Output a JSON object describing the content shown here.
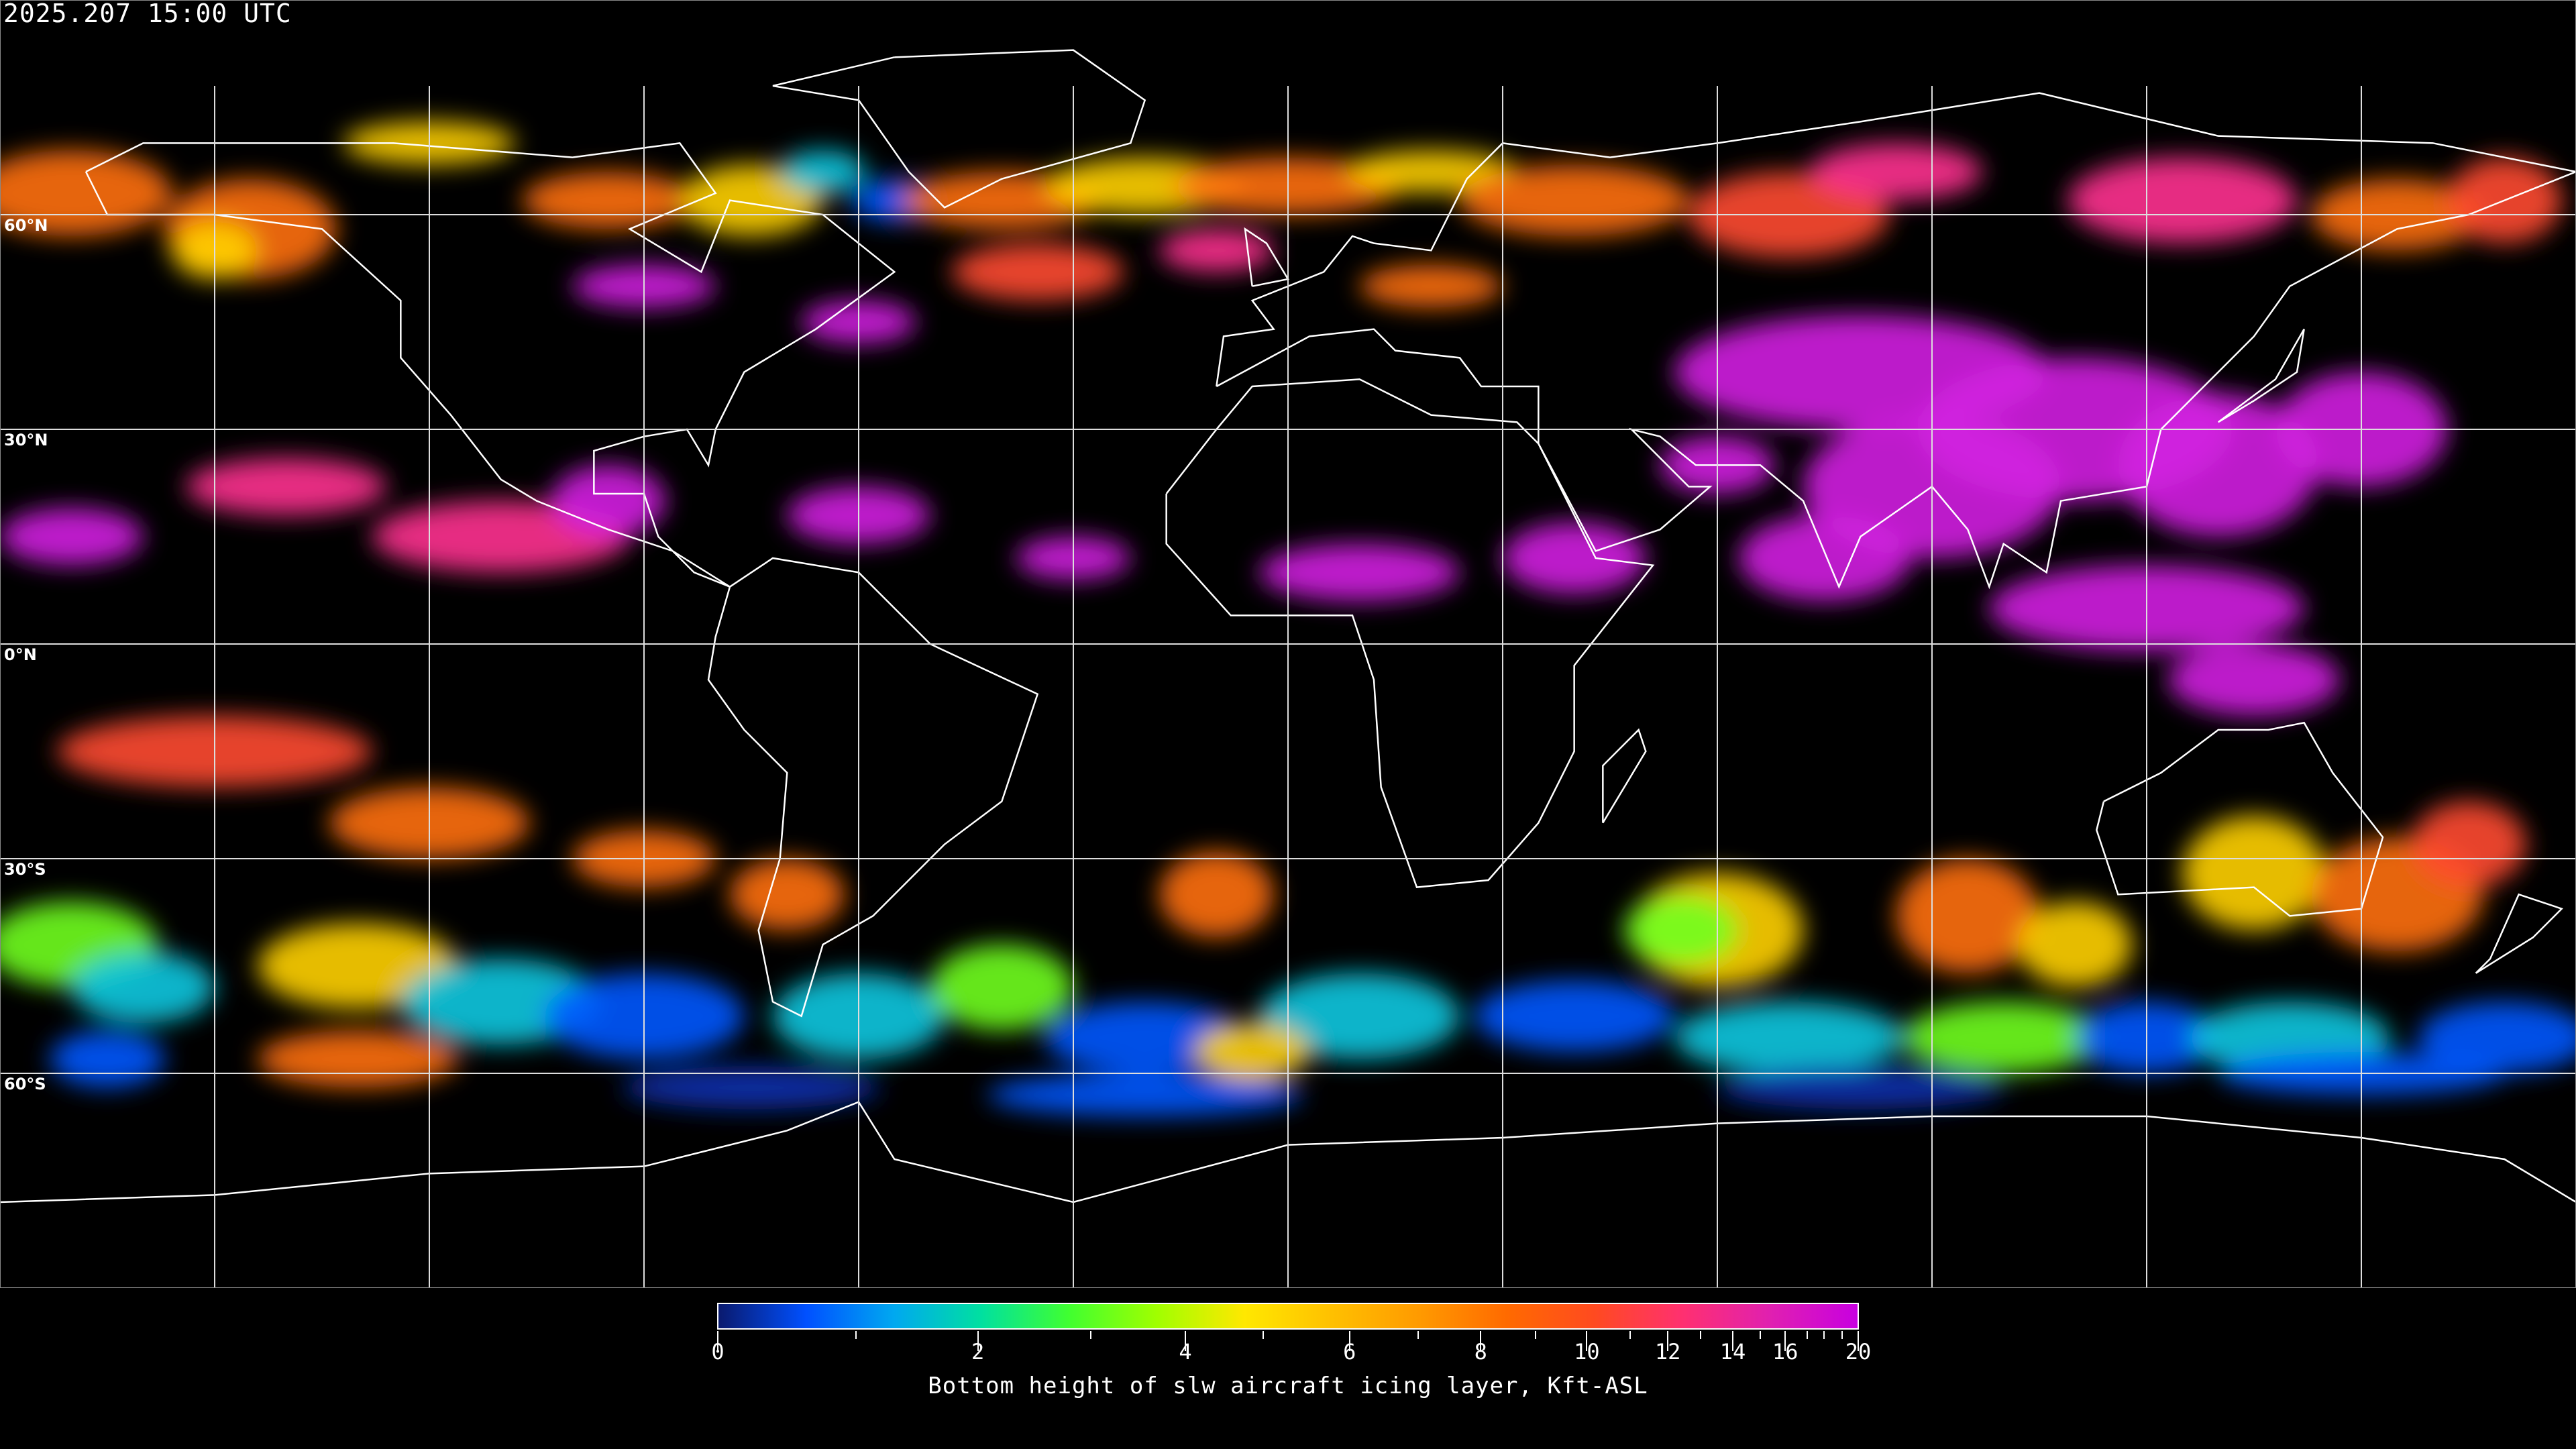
{
  "title": "2025.207 15:00 UTC",
  "map": {
    "projection": "equirectangular",
    "graticule_spacing_deg": 30,
    "lat_labels": [
      "60°N",
      "30°N",
      "0°N",
      "30°S",
      "60°S"
    ],
    "lat_values": [
      60,
      30,
      0,
      -30,
      -60
    ]
  },
  "colorbar": {
    "label": "Bottom height of slw aircraft icing layer, Kft-ASL",
    "ticks": [
      "0",
      "2",
      "4",
      "6",
      "8",
      "10",
      "12",
      "14",
      "16",
      "20"
    ],
    "min": 0,
    "max": 20,
    "colors": [
      "#0a1a6e",
      "#0050ff",
      "#00a8f0",
      "#00e0a0",
      "#40ff30",
      "#a0ff00",
      "#ffe800",
      "#ffc000",
      "#ff9a00",
      "#ff6a00",
      "#ff4a20",
      "#ff3070",
      "#e020b0",
      "#c800e0"
    ]
  }
}
